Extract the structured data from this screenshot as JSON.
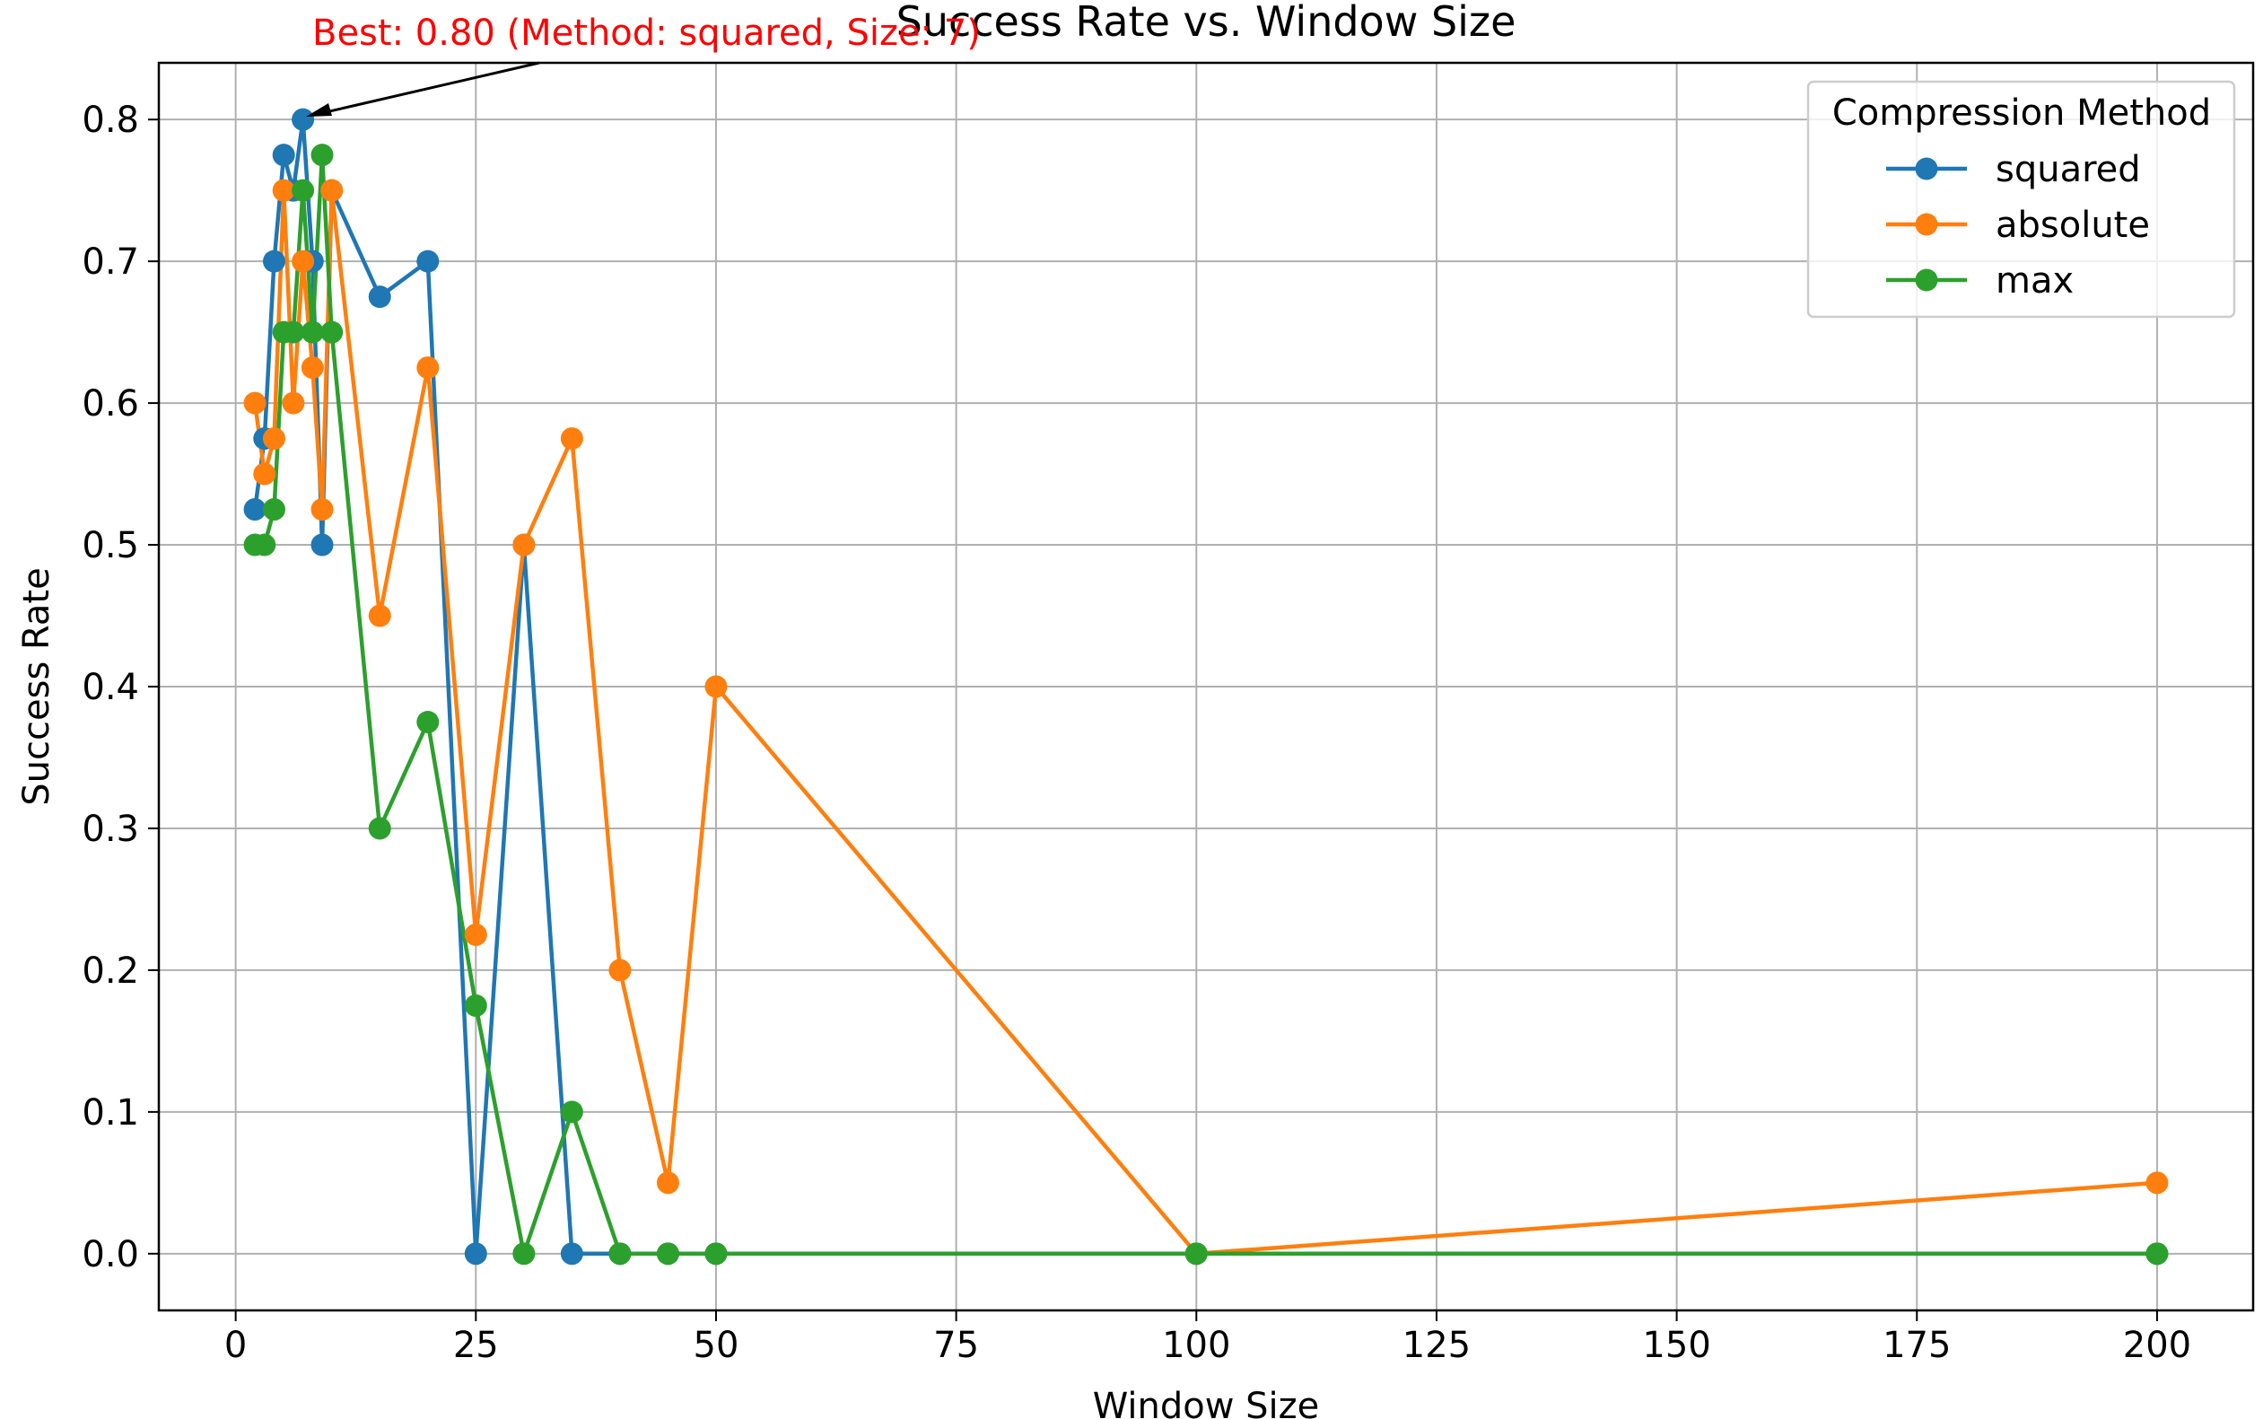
{
  "chart_data": {
    "type": "line",
    "title": "Success Rate vs. Window Size",
    "xlabel": "Window Size",
    "ylabel": "Success Rate",
    "xlim": [
      -8,
      210
    ],
    "ylim": [
      -0.04,
      0.84
    ],
    "xticks": [
      0,
      25,
      50,
      75,
      100,
      125,
      150,
      175,
      200
    ],
    "yticks": [
      0.0,
      0.1,
      0.2,
      0.3,
      0.4,
      0.5,
      0.6,
      0.7,
      0.8
    ],
    "ytick_format": "0.0",
    "grid": true,
    "legend": {
      "title": "Compression Method",
      "placement": "top-right"
    },
    "series": [
      {
        "name": "squared",
        "color": "#1f77b4",
        "x": [
          2,
          3,
          4,
          5,
          6,
          7,
          8,
          9,
          10,
          15,
          20,
          25,
          30,
          35,
          40,
          45,
          50,
          100,
          200
        ],
        "y": [
          0.525,
          0.575,
          0.7,
          0.775,
          0.75,
          0.8,
          0.7,
          0.5,
          0.75,
          0.675,
          0.7,
          0.0,
          0.5,
          0.0,
          0.0,
          0.0,
          0.0,
          0.0,
          0.0
        ]
      },
      {
        "name": "absolute",
        "color": "#ff7f0e",
        "x": [
          2,
          3,
          4,
          5,
          6,
          7,
          8,
          9,
          10,
          15,
          20,
          25,
          30,
          35,
          40,
          45,
          50,
          100,
          200
        ],
        "y": [
          0.6,
          0.55,
          0.575,
          0.75,
          0.6,
          0.7,
          0.625,
          0.525,
          0.75,
          0.45,
          0.625,
          0.225,
          0.5,
          0.575,
          0.2,
          0.05,
          0.4,
          0.0,
          0.05
        ]
      },
      {
        "name": "max",
        "color": "#2ca02c",
        "x": [
          2,
          3,
          4,
          5,
          6,
          7,
          8,
          9,
          10,
          15,
          20,
          25,
          30,
          35,
          40,
          45,
          50,
          100,
          200
        ],
        "y": [
          0.5,
          0.5,
          0.525,
          0.65,
          0.65,
          0.75,
          0.65,
          0.775,
          0.65,
          0.3,
          0.375,
          0.175,
          0.0,
          0.1,
          0.0,
          0.0,
          0.0,
          0.0,
          0.0
        ]
      }
    ],
    "annotation": {
      "text": "Best: 0.80 (Method: squared, Size: 7)",
      "color": "#ff0000",
      "target_x": 7,
      "target_y": 0.8
    }
  }
}
